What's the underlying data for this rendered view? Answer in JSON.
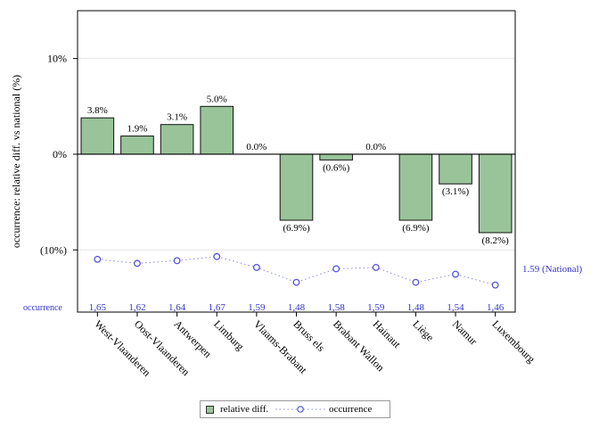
{
  "chart_data": {
    "type": "bar",
    "ylabel": "occurrence: relative diff. vs national (%)",
    "ylim": [
      -0.165,
      0.15
    ],
    "yticks": [
      {
        "value": 0.1,
        "label": "10%"
      },
      {
        "value": 0.0,
        "label": "0%"
      },
      {
        "value": -0.1,
        "label": "(10%)"
      }
    ],
    "categories": [
      "West-Vlaanderen",
      "Oost-Vlaanderen",
      "Antwerpen",
      "Limburg",
      "Vlaams-Brabant",
      "Bruss els",
      "Brabant Wallon",
      "Hainaut",
      "Liège",
      "Namur",
      "Luxembourg"
    ],
    "series": [
      {
        "name": "relative diff.",
        "values": [
          0.038,
          0.019,
          0.031,
          0.05,
          0.0,
          -0.069,
          -0.006,
          0.0,
          -0.069,
          -0.031,
          -0.082
        ],
        "labels": [
          "3.8%",
          "1.9%",
          "3.1%",
          "5.0%",
          "0.0%",
          "(6.9%)",
          "(0.6%)",
          "0.0%",
          "(6.9%)",
          "(3.1%)",
          "(8.2%)"
        ],
        "color": "#99c499"
      },
      {
        "name": "occurrence",
        "values": [
          1.65,
          1.62,
          1.64,
          1.67,
          1.59,
          1.48,
          1.58,
          1.59,
          1.48,
          1.54,
          1.46
        ],
        "labels": [
          "1,65",
          "1,62",
          "1,64",
          "1,67",
          "1,59",
          "1,48",
          "1,58",
          "1,59",
          "1,48",
          "1,54",
          "1,46"
        ],
        "color": "#3333cc"
      }
    ],
    "occurrence_row_label": "occurrence",
    "national": {
      "value": 1.59,
      "label": "1.59 (National)"
    },
    "legend": {
      "position": "bottom-center",
      "items": [
        "relative diff.",
        "occurrence"
      ]
    },
    "grid": true
  }
}
